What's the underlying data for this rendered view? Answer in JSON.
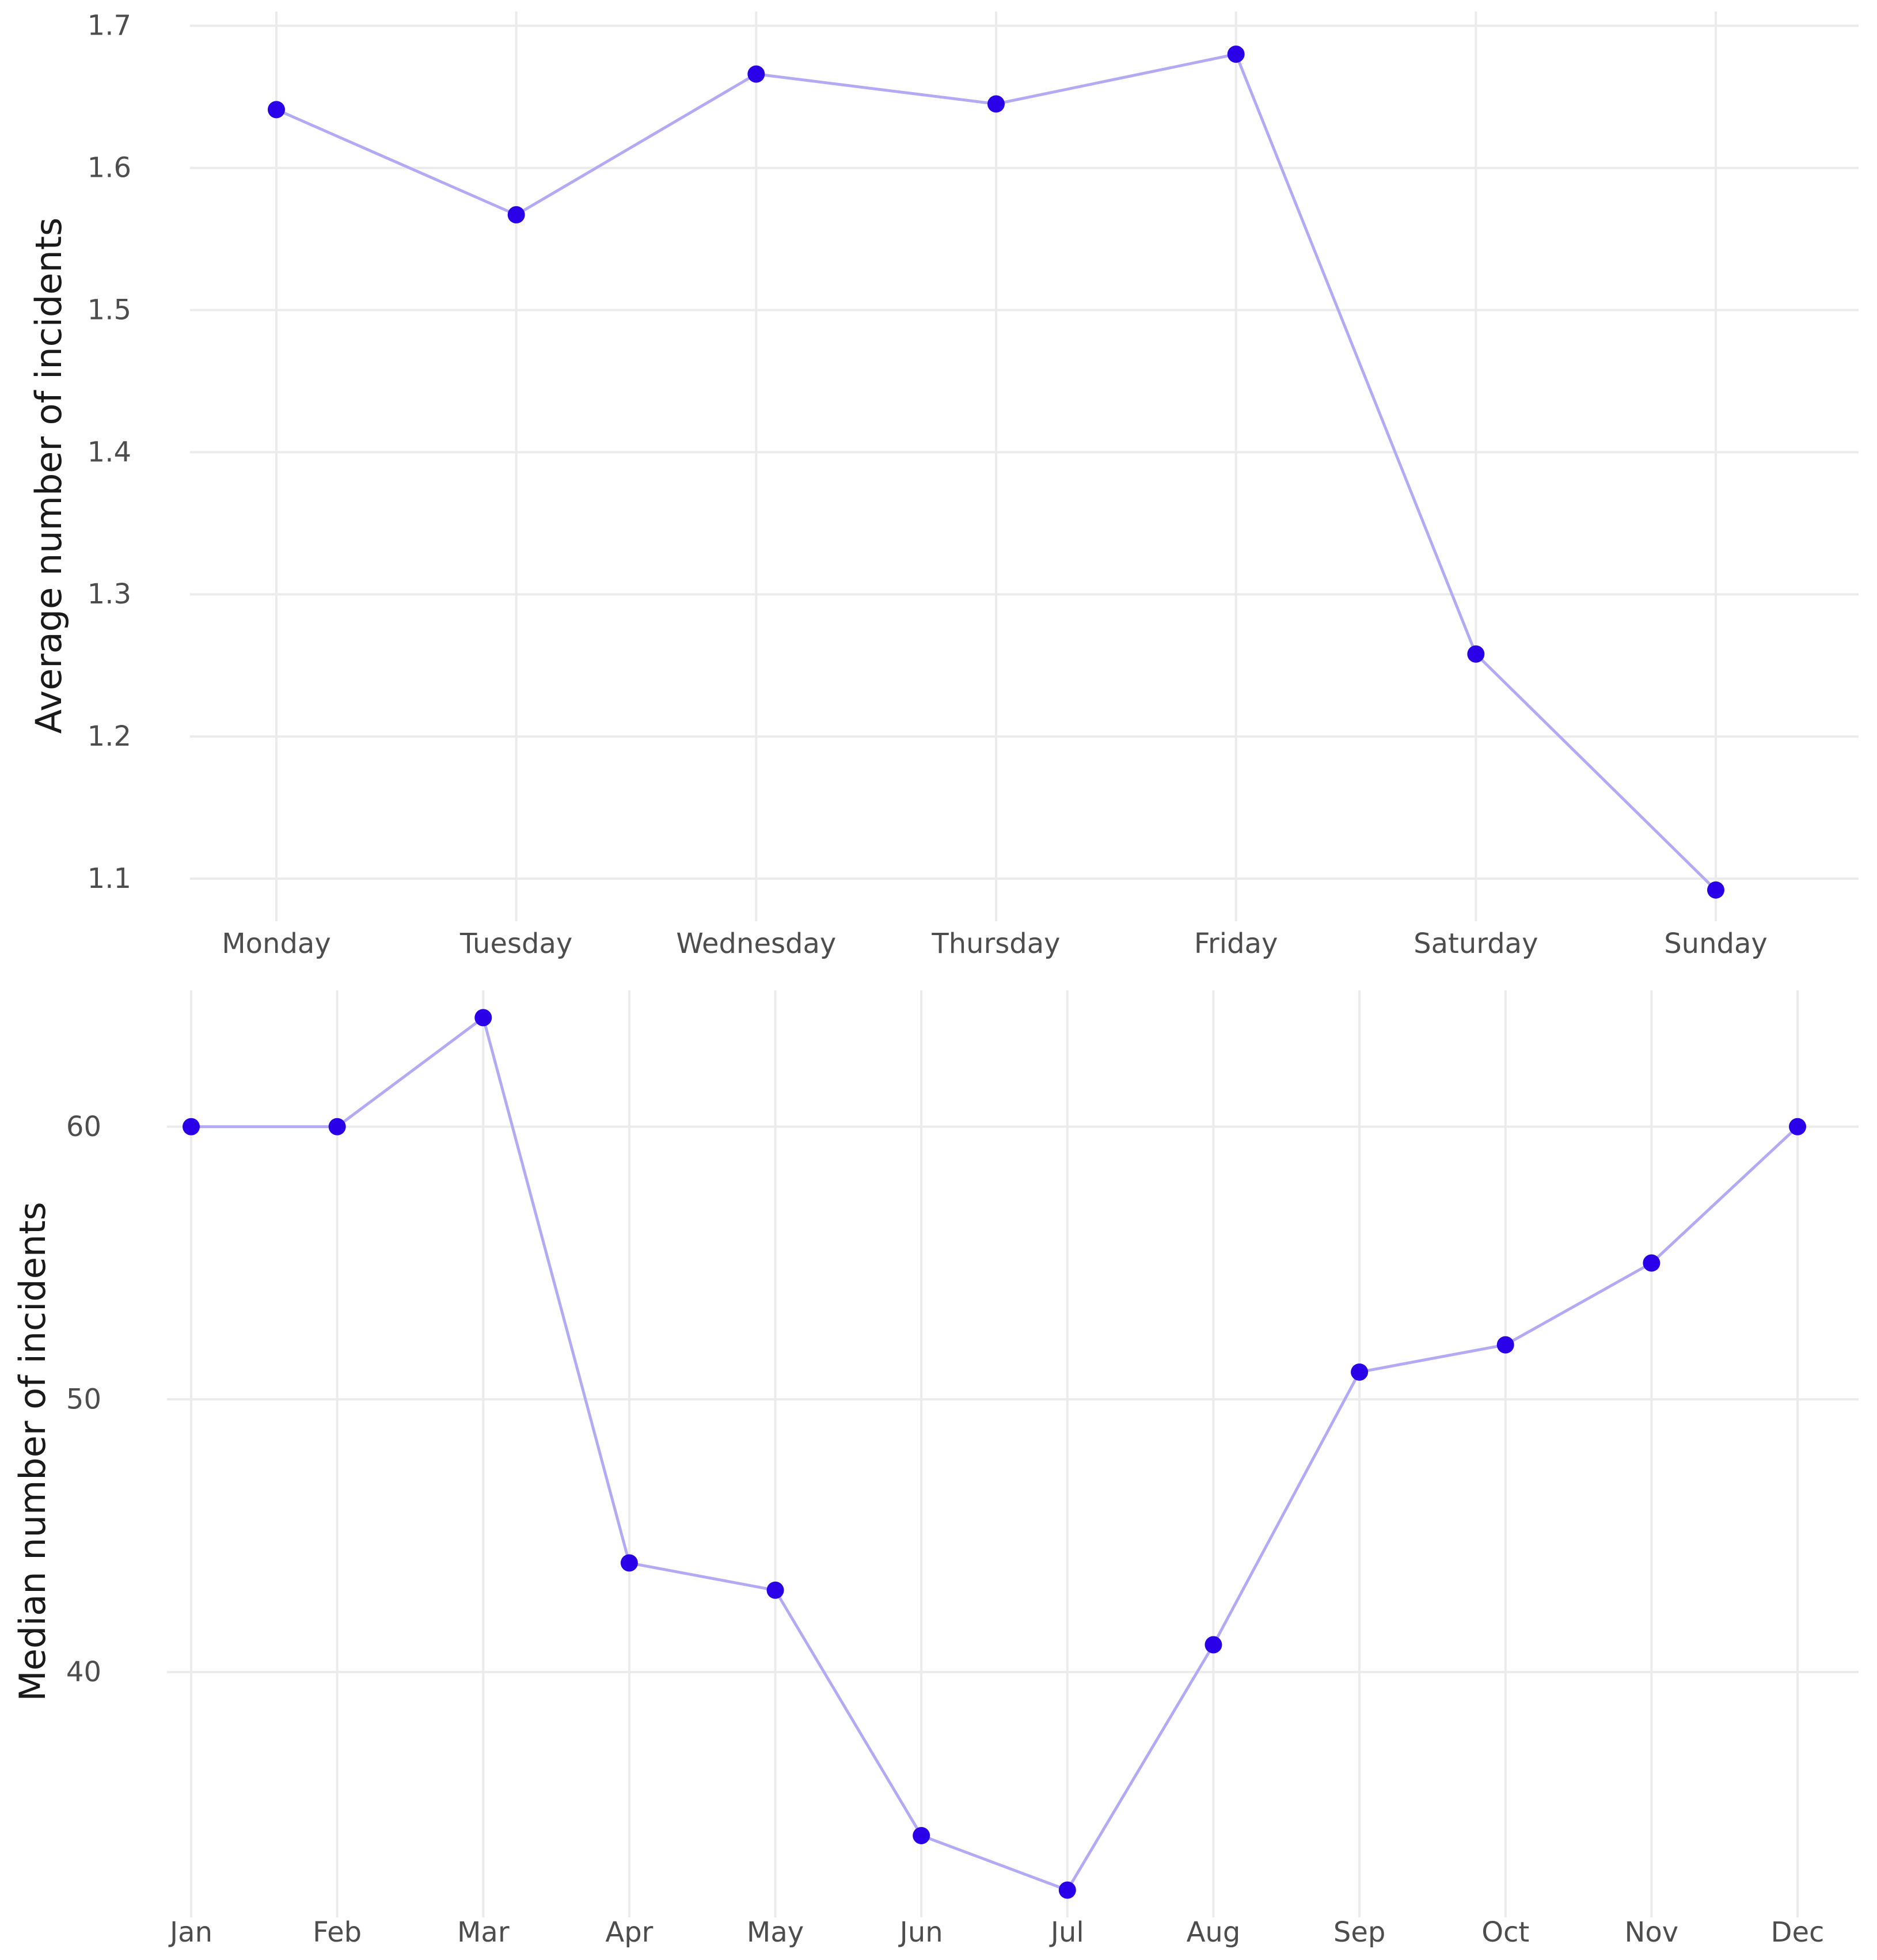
{
  "colors": {
    "point": "#2a00e8",
    "line": "#b3aaf6",
    "grid": "#ebebeb"
  },
  "chart_data": [
    {
      "type": "line",
      "title": "",
      "xlabel": "",
      "ylabel": "Average number of incidents",
      "categories": [
        "Monday",
        "Tuesday",
        "Wednesday",
        "Thursday",
        "Friday",
        "Saturday",
        "Sunday"
      ],
      "values": [
        1.641,
        1.567,
        1.666,
        1.645,
        1.68,
        1.258,
        1.092
      ],
      "ylim": [
        1.07,
        1.71
      ],
      "yticks": [
        1.1,
        1.2,
        1.3,
        1.4,
        1.5,
        1.6,
        1.7
      ],
      "ytick_labels": [
        "1.1",
        "1.2",
        "1.3",
        "1.4",
        "1.5",
        "1.6",
        "1.7"
      ],
      "grid": true,
      "legend": "none"
    },
    {
      "type": "line",
      "title": "",
      "xlabel": "",
      "ylabel": "Median number of incidents",
      "categories": [
        "Jan",
        "Feb",
        "Mar",
        "Apr",
        "May",
        "Jun",
        "Jul",
        "Aug",
        "Sep",
        "Oct",
        "Nov",
        "Dec"
      ],
      "values": [
        60,
        60,
        64,
        44,
        43,
        34,
        32,
        41,
        51,
        52,
        55,
        60
      ],
      "ylim": [
        31,
        65
      ],
      "yticks": [
        40,
        50,
        60
      ],
      "ytick_labels": [
        "40",
        "50",
        "60"
      ],
      "grid": true,
      "legend": "none"
    }
  ]
}
